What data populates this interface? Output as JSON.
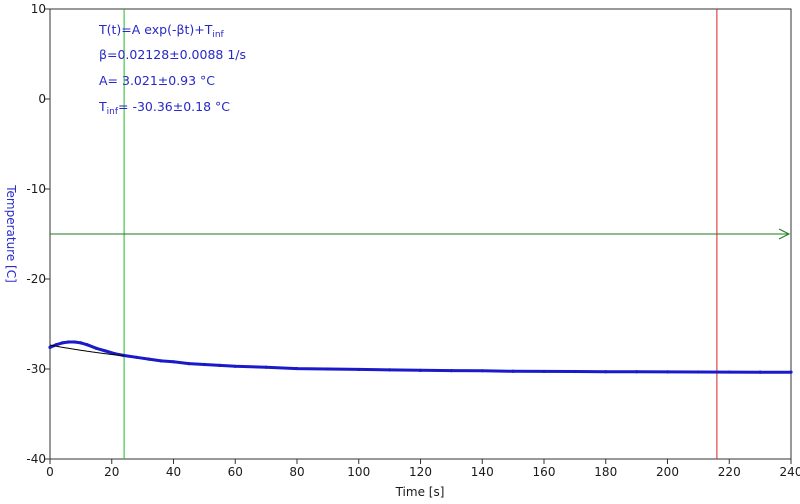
{
  "chart_data": {
    "type": "line",
    "xlabel": "Time [s]",
    "ylabel": "Temperature [C]",
    "xlim": [
      0,
      240
    ],
    "ylim": [
      -40,
      10
    ],
    "x_ticks": [
      0,
      20,
      40,
      60,
      80,
      100,
      120,
      140,
      160,
      180,
      200,
      220,
      240
    ],
    "y_ticks": [
      10,
      0,
      -10,
      -20,
      -30,
      -40
    ],
    "grid": false,
    "series": [
      {
        "kind": "measured",
        "color": "#1a1ac8",
        "x": [
          0,
          2,
          4,
          6,
          8,
          10,
          12,
          15,
          18,
          21,
          24,
          28,
          32,
          36,
          40,
          45,
          50,
          55,
          60,
          70,
          80,
          90,
          100,
          110,
          120,
          130,
          140,
          150,
          160,
          170,
          180,
          190,
          200,
          210,
          220,
          230,
          240
        ],
        "y": [
          -27.6,
          -27.3,
          -27.1,
          -27.0,
          -27.0,
          -27.1,
          -27.3,
          -27.7,
          -28.0,
          -28.3,
          -28.5,
          -28.7,
          -28.9,
          -29.1,
          -29.2,
          -29.4,
          -29.5,
          -29.6,
          -29.7,
          -29.8,
          -29.95,
          -30.0,
          -30.05,
          -30.1,
          -30.15,
          -30.18,
          -30.2,
          -30.25,
          -30.27,
          -30.28,
          -30.3,
          -30.3,
          -30.32,
          -30.33,
          -30.34,
          -30.35,
          -30.35
        ]
      },
      {
        "kind": "fit",
        "color": "#000000",
        "x_range": [
          0,
          24
        ],
        "A": 3.021,
        "beta": 0.02128,
        "T_inf": -30.36
      }
    ],
    "markers": {
      "vertical_green_x": 24,
      "vertical_red_x": 216,
      "horizontal_green_y": -15,
      "green_color": "#22bb22",
      "red_color": "#dd2222",
      "horizontal_color": "#1e7a1e"
    },
    "annotations": {
      "formula_main": "T(t)=A exp(-βt)+T",
      "formula_sub": "inf",
      "beta_line": "β=0.02128±0.0088 1/s",
      "a_line": "A= 3.021±0.93 °C",
      "tinf_main": "T",
      "tinf_sub": "inf",
      "tinf_rest": "= -30.36±0.18 °C"
    }
  }
}
